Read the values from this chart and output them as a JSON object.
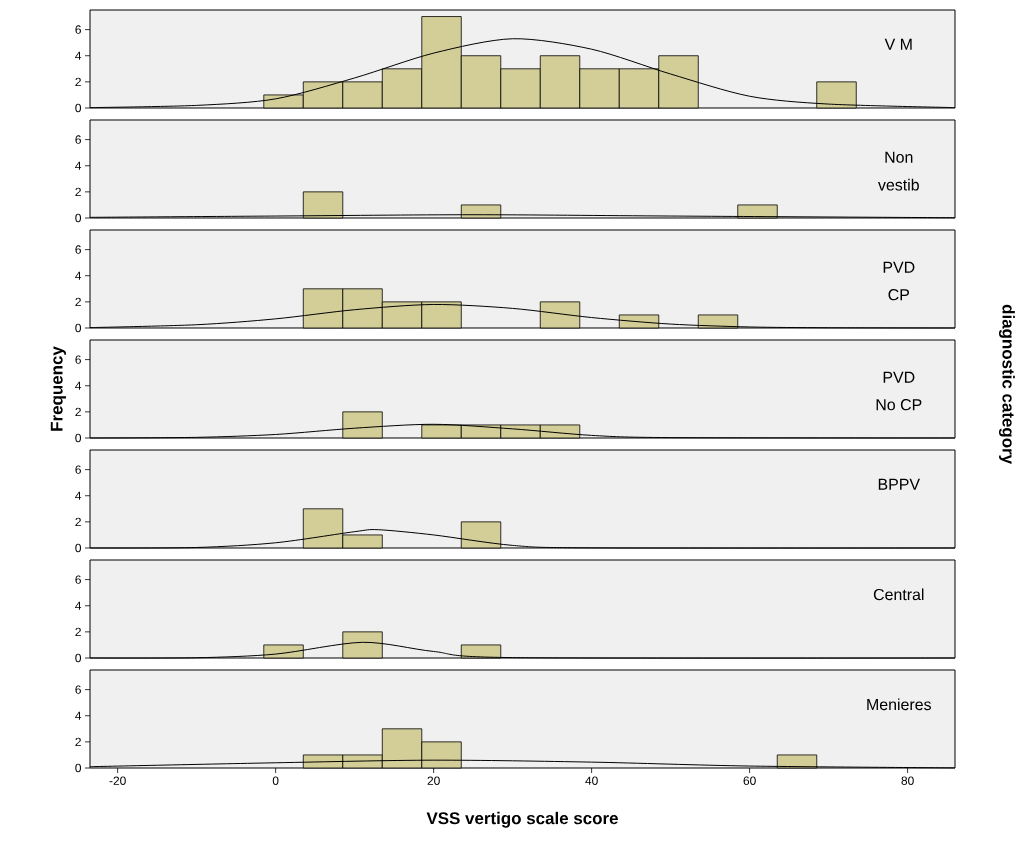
{
  "chart_data": [
    {
      "type": "histogram",
      "bins": [
        -1.5,
        3.5,
        8.5,
        13.5,
        18.5,
        23.5,
        28.5,
        33.5,
        38.5,
        43.5,
        48.5,
        53.5,
        58.5,
        63.5,
        68.5,
        73.5
      ],
      "values": [
        1,
        2,
        2,
        3,
        7,
        4,
        3,
        4,
        3,
        3,
        4,
        0,
        0,
        0,
        2
      ],
      "color": "#d3ce97",
      "xlim": [
        -23.5,
        86
      ],
      "ylim": [
        0,
        7.5
      ],
      "yticks": [
        0,
        2,
        4,
        6
      ],
      "tick_labels": "y",
      "annotations": [
        "V M"
      ],
      "series": [
        {
          "type": "line",
          "color": "#000000",
          "x": [
            -23.5,
            -10,
            0,
            10,
            20,
            30,
            40,
            50,
            60,
            70,
            86
          ],
          "values": [
            0.03,
            0.2,
            0.7,
            2.3,
            4.2,
            5.3,
            4.5,
            2.6,
            0.9,
            0.3,
            0.03
          ]
        }
      ]
    },
    {
      "type": "histogram",
      "bins": [
        -1.5,
        3.5,
        8.5,
        13.5,
        18.5,
        23.5,
        28.5,
        33.5,
        38.5,
        43.5,
        48.5,
        53.5,
        58.5,
        63.5,
        68.5,
        73.5
      ],
      "values": [
        0,
        2,
        0,
        0,
        0,
        1,
        0,
        0,
        0,
        0,
        0,
        0,
        1,
        0,
        0
      ],
      "color": "#d3ce97",
      "xlim": [
        -23.5,
        86
      ],
      "ylim": [
        0,
        7.5
      ],
      "yticks": [
        0,
        2,
        4,
        6
      ],
      "tick_labels": "y",
      "annotations": [
        "Non",
        "vestib"
      ],
      "series": [
        {
          "type": "line",
          "color": "#000000",
          "x": [
            -23.5,
            0,
            25,
            50,
            86
          ],
          "values": [
            0.05,
            0.15,
            0.25,
            0.15,
            0.02
          ]
        }
      ]
    },
    {
      "type": "histogram",
      "bins": [
        -1.5,
        3.5,
        8.5,
        13.5,
        18.5,
        23.5,
        28.5,
        33.5,
        38.5,
        43.5,
        48.5,
        53.5,
        58.5,
        63.5,
        68.5,
        73.5
      ],
      "values": [
        0,
        3,
        3,
        2,
        2,
        0,
        0,
        2,
        0,
        1,
        0,
        1,
        0,
        0,
        0
      ],
      "color": "#d3ce97",
      "xlim": [
        -23.5,
        86
      ],
      "ylim": [
        0,
        7.5
      ],
      "yticks": [
        0,
        2,
        4,
        6
      ],
      "tick_labels": "y",
      "annotations": [
        "PVD",
        "CP"
      ],
      "series": [
        {
          "type": "line",
          "color": "#000000",
          "x": [
            -23.5,
            -10,
            0,
            10,
            20,
            30,
            40,
            50,
            60,
            70,
            86
          ],
          "values": [
            0.03,
            0.25,
            0.7,
            1.4,
            1.8,
            1.5,
            0.8,
            0.3,
            0.08,
            0.02,
            0
          ]
        }
      ]
    },
    {
      "type": "histogram",
      "bins": [
        -1.5,
        3.5,
        8.5,
        13.5,
        18.5,
        23.5,
        28.5,
        33.5,
        38.5,
        43.5,
        48.5,
        53.5,
        58.5,
        63.5,
        68.5,
        73.5
      ],
      "values": [
        0,
        0,
        2,
        0,
        1,
        1,
        1,
        1,
        0,
        0,
        0,
        0,
        0,
        0,
        0
      ],
      "color": "#d3ce97",
      "xlim": [
        -23.5,
        86
      ],
      "ylim": [
        0,
        7.5
      ],
      "yticks": [
        0,
        2,
        4,
        6
      ],
      "tick_labels": "y",
      "annotations": [
        "PVD",
        "No CP"
      ],
      "ylabel": "Frequency",
      "y2label": "diagnostic category",
      "series": [
        {
          "type": "line",
          "color": "#000000",
          "x": [
            -23.5,
            -10,
            0,
            10,
            20,
            30,
            40,
            50,
            86
          ],
          "values": [
            0,
            0.05,
            0.27,
            0.75,
            1.05,
            0.7,
            0.2,
            0.03,
            0
          ]
        }
      ]
    },
    {
      "type": "histogram",
      "bins": [
        -1.5,
        3.5,
        8.5,
        13.5,
        18.5,
        23.5,
        28.5,
        33.5,
        38.5,
        43.5,
        48.5,
        53.5,
        58.5,
        63.5,
        68.5,
        73.5
      ],
      "values": [
        0,
        3,
        1,
        0,
        0,
        2,
        0,
        0,
        0,
        0,
        0,
        0,
        0,
        0,
        0
      ],
      "color": "#d3ce97",
      "xlim": [
        -23.5,
        86
      ],
      "ylim": [
        0,
        7.5
      ],
      "yticks": [
        0,
        2,
        4,
        6
      ],
      "tick_labels": "y",
      "annotations": [
        "BPPV"
      ],
      "series": [
        {
          "type": "line",
          "color": "#000000",
          "x": [
            -23.5,
            -10,
            0,
            10,
            13,
            20,
            30,
            40,
            86
          ],
          "values": [
            0,
            0.04,
            0.4,
            1.25,
            1.4,
            1.0,
            0.2,
            0.01,
            0
          ]
        }
      ]
    },
    {
      "type": "histogram",
      "bins": [
        -1.5,
        3.5,
        8.5,
        13.5,
        18.5,
        23.5,
        28.5,
        33.5,
        38.5,
        43.5,
        48.5,
        53.5,
        58.5,
        63.5,
        68.5,
        73.5
      ],
      "values": [
        1,
        0,
        2,
        0,
        0,
        1,
        0,
        0,
        0,
        0,
        0,
        0,
        0,
        0,
        0
      ],
      "color": "#d3ce97",
      "xlim": [
        -23.5,
        86
      ],
      "ylim": [
        0,
        7.5
      ],
      "yticks": [
        0,
        2,
        4,
        6
      ],
      "tick_labels": "y",
      "annotations": [
        "Central"
      ],
      "series": [
        {
          "type": "line",
          "color": "#000000",
          "x": [
            -23.5,
            -10,
            0,
            11,
            20,
            30,
            86
          ],
          "values": [
            0,
            0.02,
            0.3,
            1.2,
            0.5,
            0.03,
            0
          ]
        }
      ]
    },
    {
      "type": "histogram",
      "bins": [
        -1.5,
        3.5,
        8.5,
        13.5,
        18.5,
        23.5,
        28.5,
        33.5,
        38.5,
        43.5,
        48.5,
        53.5,
        58.5,
        63.5,
        68.5,
        73.5
      ],
      "values": [
        0,
        1,
        1,
        3,
        2,
        0,
        0,
        0,
        0,
        0,
        0,
        0,
        0,
        1,
        0
      ],
      "color": "#d3ce97",
      "xlim": [
        -23.5,
        86
      ],
      "ylim": [
        0,
        7.5
      ],
      "xticks": [
        -20,
        0,
        20,
        40,
        60,
        80
      ],
      "yticks": [
        0,
        2,
        4,
        6
      ],
      "annotations": [
        "Menieres"
      ],
      "xlabel": "VSS vertigo scale score",
      "series": [
        {
          "type": "line",
          "color": "#000000",
          "x": [
            -23.5,
            0,
            20,
            40,
            60,
            86
          ],
          "values": [
            0.1,
            0.4,
            0.6,
            0.45,
            0.15,
            0.01
          ]
        }
      ]
    }
  ]
}
